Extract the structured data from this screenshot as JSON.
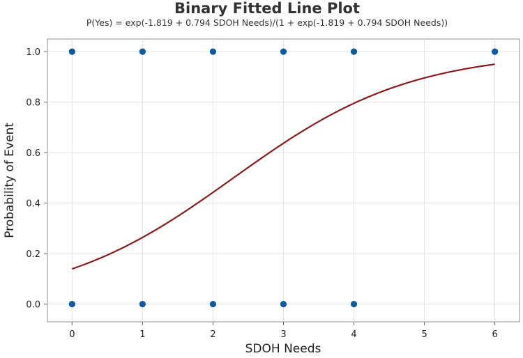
{
  "chart_data": {
    "type": "scatter",
    "title": "Binary Fitted Line Plot",
    "subtitle": "P(Yes) = exp(-1.819 + 0.794 SDOH Needs)/(1 + exp(-1.819 + 0.794 SDOH Needs))",
    "xlabel": "SDOH Needs",
    "ylabel": "Probability of Event",
    "xlim": [
      -0.35,
      6.35
    ],
    "ylim": [
      -0.07,
      1.05
    ],
    "xticks": [
      0,
      1,
      2,
      3,
      4,
      5,
      6
    ],
    "xtick_labels": [
      "0",
      "1",
      "2",
      "3",
      "4",
      "5",
      "6"
    ],
    "yticks": [
      0.0,
      0.2,
      0.4,
      0.6,
      0.8,
      1.0
    ],
    "ytick_labels": [
      "0.0",
      "0.2",
      "0.4",
      "0.6",
      "0.8",
      "1.0"
    ],
    "grid": true,
    "points": {
      "color": "#0b5aa6",
      "x": [
        0,
        1,
        2,
        3,
        4,
        6,
        0,
        1,
        2,
        3,
        4
      ],
      "y": [
        1,
        1,
        1,
        1,
        1,
        1,
        0,
        0,
        0,
        0,
        0
      ]
    },
    "fitted_line": {
      "color": "#8b1a1a",
      "intercept": -1.819,
      "slope": 0.794,
      "x_range": [
        0,
        6
      ]
    }
  }
}
